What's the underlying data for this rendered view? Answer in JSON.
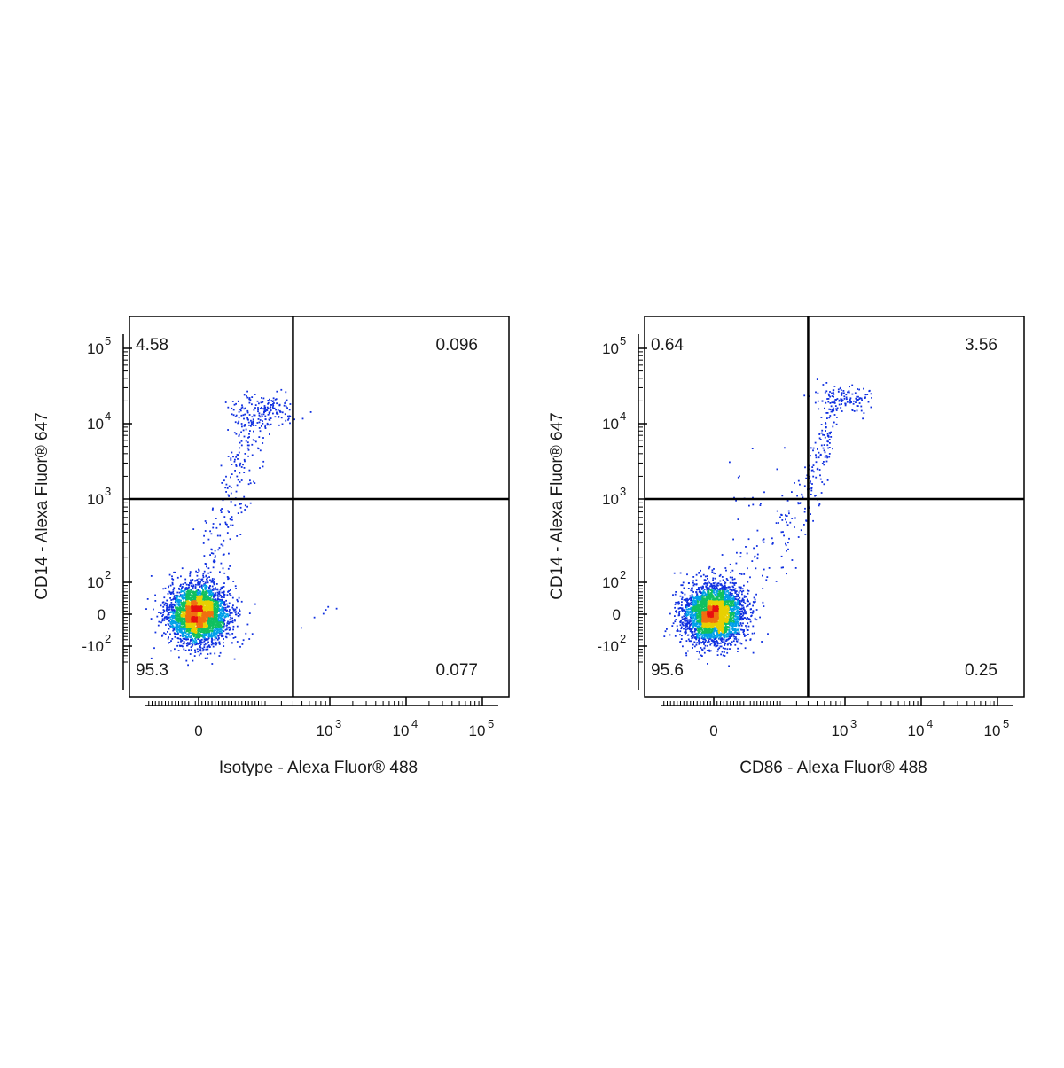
{
  "chart_data": [
    {
      "type": "scatter",
      "subtype": "flow-cytometry-density-dot-plot",
      "xlabel": "Isotype - Alexa Fluor® 488",
      "ylabel": "CD14 - Alexa Fluor® 647",
      "x_scale": "biexponential",
      "y_scale": "biexponential",
      "x_ticks": [
        {
          "value": 0,
          "base": "0",
          "exp": ""
        },
        {
          "value": 1000,
          "base": "10",
          "exp": "3"
        },
        {
          "value": 10000,
          "base": "10",
          "exp": "4"
        },
        {
          "value": 100000,
          "base": "10",
          "exp": "5"
        }
      ],
      "y_ticks": [
        {
          "value": -100,
          "base": "-10",
          "exp": "2"
        },
        {
          "value": 0,
          "base": "0",
          "exp": ""
        },
        {
          "value": 100,
          "base": "10",
          "exp": "2"
        },
        {
          "value": 1000,
          "base": "10",
          "exp": "3"
        },
        {
          "value": 10000,
          "base": "10",
          "exp": "4"
        },
        {
          "value": 100000,
          "base": "10",
          "exp": "5"
        }
      ],
      "quadrant_gate": {
        "x": 400,
        "y": 1000
      },
      "quadrant_percentages": {
        "upper_left": "4.58",
        "upper_right": "0.096",
        "lower_left": "95.3",
        "lower_right": "0.077"
      },
      "populations": [
        {
          "name": "",
          "center": [
            0,
            0
          ],
          "spread": [
            45,
            45
          ],
          "share": 0.953
        },
        {
          "name": "",
          "center": [
            200,
            15000
          ],
          "spread": [
            0.15,
            0.12
          ],
          "share": 0.0458
        },
        {
          "name": "",
          "center": [
            800,
            0
          ],
          "spread": [
            0.3,
            40
          ],
          "share": 0.00077
        }
      ],
      "grid": false,
      "legend": "none"
    },
    {
      "type": "scatter",
      "subtype": "flow-cytometry-density-dot-plot",
      "xlabel": "CD86 - Alexa Fluor® 488",
      "ylabel": "CD14 - Alexa Fluor® 647",
      "x_scale": "biexponential",
      "y_scale": "biexponential",
      "x_ticks": [
        {
          "value": 0,
          "base": "0",
          "exp": ""
        },
        {
          "value": 1000,
          "base": "10",
          "exp": "3"
        },
        {
          "value": 10000,
          "base": "10",
          "exp": "4"
        },
        {
          "value": 100000,
          "base": "10",
          "exp": "5"
        }
      ],
      "y_ticks": [
        {
          "value": -100,
          "base": "-10",
          "exp": "2"
        },
        {
          "value": 0,
          "base": "0",
          "exp": ""
        },
        {
          "value": 100,
          "base": "10",
          "exp": "2"
        },
        {
          "value": 1000,
          "base": "10",
          "exp": "3"
        },
        {
          "value": 10000,
          "base": "10",
          "exp": "4"
        },
        {
          "value": 100000,
          "base": "10",
          "exp": "5"
        }
      ],
      "quadrant_gate": {
        "x": 400,
        "y": 1000
      },
      "quadrant_percentages": {
        "upper_left": "0.64",
        "upper_right": "3.56",
        "lower_left": "95.6",
        "lower_right": "0.25"
      },
      "populations": [
        {
          "name": "",
          "center": [
            0,
            0
          ],
          "spread": [
            45,
            45
          ],
          "share": 0.956
        },
        {
          "name": "",
          "center": [
            900,
            22000
          ],
          "spread": [
            0.18,
            0.1
          ],
          "share": 0.0356
        },
        {
          "name": "",
          "center": [
            150,
            1500
          ],
          "spread": [
            0.3,
            0.3
          ],
          "share": 0.0064
        }
      ],
      "grid": false,
      "legend": "none"
    }
  ]
}
